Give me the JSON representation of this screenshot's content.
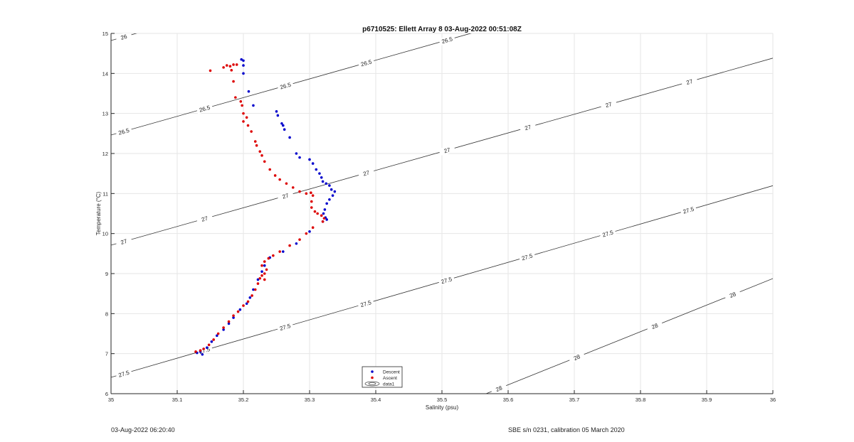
{
  "chart_data": {
    "type": "scatter",
    "title": "p6710525: Ellett Array 8 03-Aug-2022 00:51:08Z",
    "xlabel": "Salinity (psu)",
    "ylabel": "Temperature (°C)",
    "xlim": [
      35,
      36
    ],
    "ylim": [
      6,
      15
    ],
    "xticks": [
      35,
      35.1,
      35.2,
      35.3,
      35.4,
      35.5,
      35.6,
      35.7,
      35.8,
      35.9,
      36
    ],
    "xtick_labels": [
      "35",
      "35.1",
      "35.2",
      "35.3",
      "35.4",
      "35.5",
      "35.6",
      "35.7",
      "35.8",
      "35.9",
      "36"
    ],
    "yticks": [
      6,
      7,
      8,
      9,
      10,
      11,
      12,
      13,
      14,
      15
    ],
    "ytick_labels": [
      "6",
      "7",
      "8",
      "9",
      "10",
      "11",
      "12",
      "13",
      "14",
      "15"
    ],
    "grid": true,
    "legend": {
      "location": "bottom-center",
      "entries": [
        {
          "label": "Descent",
          "color": "#0000cc",
          "marker": "dot"
        },
        {
          "label": "Ascent",
          "color": "#dd0000",
          "marker": "dot"
        },
        {
          "label": "data1",
          "color": "#444444",
          "marker": "contour"
        }
      ]
    },
    "series": [
      {
        "name": "Descent",
        "color": "#0000cc",
        "points": [
          [
            35.197,
            14.35
          ],
          [
            35.2,
            14.32
          ],
          [
            35.2,
            14.2
          ],
          [
            35.2,
            14.0
          ],
          [
            35.208,
            13.55
          ],
          [
            35.215,
            13.2
          ],
          [
            35.25,
            13.05
          ],
          [
            35.252,
            12.95
          ],
          [
            35.258,
            12.75
          ],
          [
            35.26,
            12.7
          ],
          [
            35.262,
            12.6
          ],
          [
            35.27,
            12.4
          ],
          [
            35.28,
            12.0
          ],
          [
            35.285,
            11.9
          ],
          [
            35.3,
            11.85
          ],
          [
            35.305,
            11.75
          ],
          [
            35.31,
            11.6
          ],
          [
            35.315,
            11.5
          ],
          [
            35.318,
            11.4
          ],
          [
            35.32,
            11.3
          ],
          [
            35.325,
            11.25
          ],
          [
            35.33,
            11.2
          ],
          [
            35.333,
            11.1
          ],
          [
            35.338,
            11.05
          ],
          [
            35.335,
            10.95
          ],
          [
            35.33,
            10.85
          ],
          [
            35.326,
            10.75
          ],
          [
            35.323,
            10.6
          ],
          [
            35.321,
            10.5
          ],
          [
            35.324,
            10.4
          ],
          [
            35.326,
            10.35
          ],
          [
            35.32,
            10.3
          ],
          [
            35.3,
            10.05
          ],
          [
            35.28,
            9.75
          ],
          [
            35.26,
            9.55
          ],
          [
            35.24,
            9.4
          ],
          [
            35.232,
            9.2
          ],
          [
            35.228,
            9.05
          ],
          [
            35.222,
            8.85
          ],
          [
            35.215,
            8.6
          ],
          [
            35.21,
            8.4
          ],
          [
            35.205,
            8.25
          ],
          [
            35.195,
            8.1
          ],
          [
            35.185,
            7.9
          ],
          [
            35.178,
            7.75
          ],
          [
            35.17,
            7.6
          ],
          [
            35.16,
            7.45
          ],
          [
            35.152,
            7.3
          ],
          [
            35.145,
            7.15
          ],
          [
            35.135,
            7.05
          ],
          [
            35.13,
            7.02
          ],
          [
            35.138,
            6.98
          ]
        ]
      },
      {
        "name": "Ascent",
        "color": "#dd0000",
        "points": [
          [
            35.15,
            14.07
          ],
          [
            35.17,
            14.15
          ],
          [
            35.175,
            14.2
          ],
          [
            35.18,
            14.18
          ],
          [
            35.185,
            14.22
          ],
          [
            35.19,
            14.22
          ],
          [
            35.182,
            14.08
          ],
          [
            35.185,
            13.8
          ],
          [
            35.188,
            13.4
          ],
          [
            35.196,
            13.3
          ],
          [
            35.198,
            13.2
          ],
          [
            35.2,
            13.0
          ],
          [
            35.205,
            12.9
          ],
          [
            35.2,
            12.8
          ],
          [
            35.207,
            12.7
          ],
          [
            35.212,
            12.55
          ],
          [
            35.218,
            12.3
          ],
          [
            35.22,
            12.2
          ],
          [
            35.225,
            12.05
          ],
          [
            35.228,
            11.95
          ],
          [
            35.232,
            11.8
          ],
          [
            35.24,
            11.6
          ],
          [
            35.248,
            11.45
          ],
          [
            35.255,
            11.35
          ],
          [
            35.265,
            11.25
          ],
          [
            35.275,
            11.15
          ],
          [
            35.285,
            11.05
          ],
          [
            35.295,
            11.0
          ],
          [
            35.302,
            11.02
          ],
          [
            35.305,
            10.95
          ],
          [
            35.303,
            10.8
          ],
          [
            35.303,
            10.65
          ],
          [
            35.308,
            10.55
          ],
          [
            35.312,
            10.5
          ],
          [
            35.318,
            10.45
          ],
          [
            35.322,
            10.38
          ],
          [
            35.32,
            10.3
          ],
          [
            35.305,
            10.15
          ],
          [
            35.295,
            10.0
          ],
          [
            35.285,
            9.85
          ],
          [
            35.27,
            9.7
          ],
          [
            35.255,
            9.55
          ],
          [
            35.245,
            9.45
          ],
          [
            35.238,
            9.38
          ],
          [
            35.232,
            9.3
          ],
          [
            35.228,
            9.2
          ],
          [
            35.235,
            9.1
          ],
          [
            35.232,
            9.0
          ],
          [
            35.228,
            8.95
          ],
          [
            35.225,
            8.88
          ],
          [
            35.232,
            8.85
          ],
          [
            35.222,
            8.75
          ],
          [
            35.218,
            8.6
          ],
          [
            35.213,
            8.45
          ],
          [
            35.207,
            8.3
          ],
          [
            35.2,
            8.2
          ],
          [
            35.192,
            8.05
          ],
          [
            35.185,
            7.95
          ],
          [
            35.178,
            7.8
          ],
          [
            35.17,
            7.65
          ],
          [
            35.162,
            7.5
          ],
          [
            35.155,
            7.35
          ],
          [
            35.148,
            7.22
          ],
          [
            35.14,
            7.12
          ],
          [
            35.135,
            7.08
          ],
          [
            35.128,
            7.05
          ]
        ]
      }
    ],
    "contours": [
      {
        "level": "26",
        "labels": [
          "26"
        ]
      },
      {
        "level": "26.5",
        "labels": [
          "26.5",
          "26.5",
          "26.5",
          "26.5",
          "26.5",
          "26.5"
        ]
      },
      {
        "level": "27",
        "labels": [
          "27",
          "27",
          "27",
          "27",
          "27",
          "27",
          "27",
          "27",
          "27"
        ]
      },
      {
        "level": "27.5",
        "labels": [
          "27.5",
          "27.5",
          "27.5",
          "27.5",
          "27.5",
          "27.5",
          "27.5",
          "27.5"
        ]
      },
      {
        "level": "28",
        "labels": [
          "28",
          "28",
          "28",
          "28"
        ]
      }
    ]
  },
  "footer": {
    "left": "03-Aug-2022 06:20:40",
    "right": "SBE s/n 0231, calibration 05 March 2020"
  }
}
